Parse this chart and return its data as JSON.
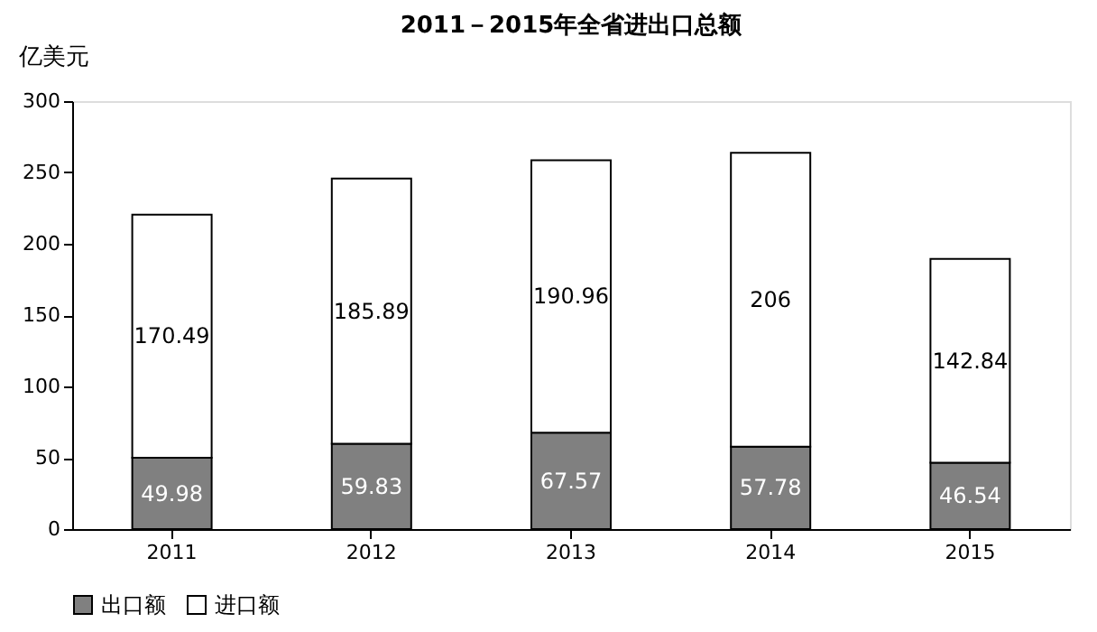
{
  "chart_data": {
    "type": "bar",
    "title": "2011－2015年全省进出口总额",
    "ylabel": "亿美元",
    "categories": [
      "2011",
      "2012",
      "2013",
      "2014",
      "2015"
    ],
    "stacked": true,
    "series": [
      {
        "name": "出口额",
        "color": "#808080",
        "values": [
          49.98,
          59.83,
          67.57,
          57.78,
          46.54
        ]
      },
      {
        "name": "进口额",
        "color": "#ffffff",
        "values": [
          170.49,
          185.89,
          190.96,
          206,
          142.84
        ]
      }
    ],
    "ylim": [
      0,
      300
    ],
    "yticks": [
      0,
      50,
      100,
      150,
      200,
      250,
      300
    ],
    "data_labels": true,
    "grid": false,
    "legend": "bottom"
  }
}
